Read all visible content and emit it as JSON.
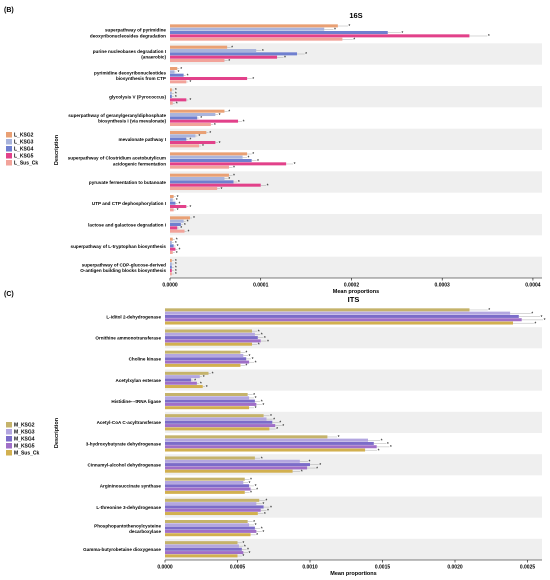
{
  "chart_data": [
    {
      "panel": "(B)",
      "type": "bar",
      "orientation": "horizontal",
      "title": "16S",
      "xlabel": "Mean proportions",
      "ylabel": "Description",
      "xlim": [
        0,
        0.00041
      ],
      "xticks": [
        "0.0000",
        "0.0001",
        "0.0002",
        "0.0003",
        "0.0004"
      ],
      "grid": false,
      "legend_position": "left",
      "categories": [
        "superpathway of pyrimidine deoxyribonucleosides degradation",
        "purine nucleobases degradation I (anaerobic)",
        "pyrimidine deoxyribonucleotides biosynthesis from CTP",
        "glycolysis V (Pyrococcus)",
        "superpathway of geranylgeranyldiphosphate biosynthesis I (via mevalonate)",
        "mevalonate pathway I",
        "superpathway of Clostridium acetobutylicum acidogenic fermentation",
        "pyruvate fermentation to butanoate",
        "UTP and CTP dephosphorylation I",
        "lactose and galactose degradation I",
        "superpathway of L-tryptophan biosynthesis",
        "superpathway of CDP-glucose-derived O-antigen building blocks biosynthesis"
      ],
      "series": [
        {
          "name": "L_KSG2",
          "color": "#e9a074",
          "values": [
            0.000185,
            6.3e-05,
            8e-06,
            2e-06,
            6e-05,
            4e-05,
            8.5e-05,
            6.5e-05,
            4e-06,
            2.2e-05,
            3e-06,
            2e-06
          ]
        },
        {
          "name": "L_KSG3",
          "color": "#a9b4dc",
          "values": [
            0.00017,
            9.5e-05,
            5e-06,
            2e-06,
            5e-05,
            2.8e-05,
            8e-05,
            6e-05,
            3e-06,
            1.5e-05,
            2e-06,
            2e-06
          ]
        },
        {
          "name": "L_KSG4",
          "color": "#6f7fcf",
          "values": [
            0.00024,
            0.00014,
            1.5e-05,
            2e-06,
            3e-05,
            1.8e-05,
            9e-05,
            7e-05,
            6e-06,
            1.2e-05,
            4e-06,
            2e-06
          ]
        },
        {
          "name": "L_KSG5",
          "color": "#e2418a",
          "values": [
            0.00033,
            0.000118,
            8.5e-05,
            1.8e-05,
            7.5e-05,
            5e-05,
            0.000128,
            0.0001,
            1.8e-05,
            8e-06,
            6e-06,
            2e-06
          ]
        },
        {
          "name": "L_Sus_Ck",
          "color": "#f2a39a",
          "values": [
            0.00019,
            6e-05,
            1.8e-05,
            3e-06,
            4.5e-05,
            3.2e-05,
            6.5e-05,
            5.2e-05,
            4e-06,
            1.6e-05,
            3e-06,
            2e-06
          ]
        }
      ]
    },
    {
      "panel": "(C)",
      "type": "bar",
      "orientation": "horizontal",
      "title": "ITS",
      "xlabel": "Mean proportions",
      "ylabel": "Description",
      "xlim": [
        0,
        0.0026
      ],
      "xticks": [
        "0.0000",
        "0.0005",
        "0.0010",
        "0.0015",
        "0.0020",
        "0.0025"
      ],
      "grid": false,
      "legend_position": "left",
      "categories": [
        "L-iditol 2-dehydrogenase",
        "Ornithine ammonotransferase",
        "Choline kinase",
        "Acetylxylan esterase",
        "Histidine---tRNA ligase",
        "Acetyl-CoA C-acyltransferase",
        "3-hydroxybutyrate dehydrogenase",
        "Cinnamyl-alcohol dehydrogenase",
        "Argininosuccinate synthase",
        "L-threonine 3-dehydrogenase",
        "Phosphopantothenoylcysteine decarboxylase",
        "Gamma-butyrobetaine dioxygenase"
      ],
      "series": [
        {
          "name": "M_KSG2",
          "color": "#c5b36b",
          "values": [
            0.0021,
            0.0006,
            0.00052,
            0.0003,
            0.00057,
            0.00068,
            0.00112,
            0.00062,
            0.00055,
            0.00065,
            0.00057,
            0.0005
          ]
        },
        {
          "name": "M_KSG3",
          "color": "#b3a6e0",
          "values": [
            0.00238,
            0.00062,
            0.00054,
            0.00024,
            0.00058,
            0.0007,
            0.0014,
            0.00093,
            0.00054,
            0.00063,
            0.00058,
            0.00051
          ]
        },
        {
          "name": "M_KSG4",
          "color": "#7b6cc9",
          "values": [
            0.00244,
            0.00064,
            0.00056,
            0.00018,
            0.00062,
            0.00074,
            0.00144,
            0.001,
            0.00058,
            0.00068,
            0.00062,
            0.00053
          ]
        },
        {
          "name": "M_KSG5",
          "color": "#a06fc8",
          "values": [
            0.00246,
            0.00066,
            0.00058,
            0.00022,
            0.00063,
            0.00076,
            0.00146,
            0.00098,
            0.00059,
            0.00066,
            0.00063,
            0.00054
          ]
        },
        {
          "name": "M_Sus_Ck",
          "color": "#d2b04f",
          "values": [
            0.0024,
            0.0006,
            0.00052,
            0.00026,
            0.00058,
            0.00072,
            0.00138,
            0.00088,
            0.00055,
            0.00064,
            0.00059,
            0.0005
          ]
        }
      ]
    }
  ]
}
